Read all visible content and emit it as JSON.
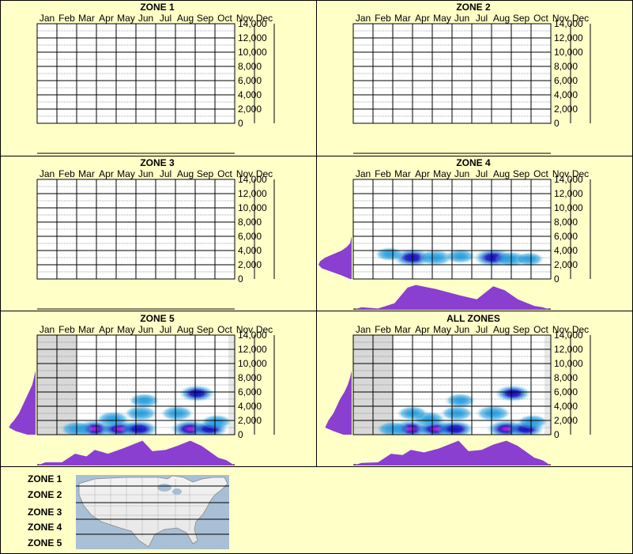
{
  "months": [
    "Jan",
    "Feb",
    "Mar",
    "Apr",
    "May",
    "Jun",
    "Jul",
    "Aug",
    "Sep",
    "Oct",
    "Nov",
    "Dec"
  ],
  "y_ticks": [
    "14,000",
    "12,000",
    "10,000",
    "8,000",
    "6,000",
    "4,000",
    "2,000",
    "0"
  ],
  "colors": {
    "background": "#ffffc8",
    "profile": "#8a3fd1",
    "density_light": "#bfeff0",
    "density_mid": "#2aa0e0",
    "density_dark": "#1010c0",
    "density_peak": "#e018d8",
    "winter_shade": "#d8d8d8"
  },
  "legend": {
    "labels": [
      "ZONE 1",
      "ZONE 2",
      "ZONE 3",
      "ZONE 4",
      "ZONE 5"
    ],
    "map": "us-map-with-zone-bands"
  },
  "chart_data": [
    {
      "type": "heatmap",
      "title": "ZONE 1",
      "x": [
        "Jan",
        "Feb",
        "Mar",
        "Apr",
        "May",
        "Jun",
        "Jul",
        "Aug",
        "Sep",
        "Oct",
        "Nov",
        "Dec"
      ],
      "ylim": [
        0,
        14000
      ],
      "elevation_profile": [],
      "month_profile": [],
      "density": []
    },
    {
      "type": "heatmap",
      "title": "ZONE 2",
      "x": [
        "Jan",
        "Feb",
        "Mar",
        "Apr",
        "May",
        "Jun",
        "Jul",
        "Aug",
        "Sep",
        "Oct",
        "Nov",
        "Dec"
      ],
      "ylim": [
        0,
        14000
      ],
      "elevation_profile": [],
      "month_profile": [],
      "density": []
    },
    {
      "type": "heatmap",
      "title": "ZONE 3",
      "x": [
        "Jan",
        "Feb",
        "Mar",
        "Apr",
        "May",
        "Jun",
        "Jul",
        "Aug",
        "Sep",
        "Oct",
        "Nov",
        "Dec"
      ],
      "ylim": [
        0,
        14000
      ],
      "elevation_profile": [],
      "month_profile": [],
      "density": []
    },
    {
      "type": "heatmap",
      "title": "ZONE 4",
      "x": [
        "Jan",
        "Feb",
        "Mar",
        "Apr",
        "May",
        "Jun",
        "Jul",
        "Aug",
        "Sep",
        "Oct",
        "Nov",
        "Dec"
      ],
      "ylim": [
        0,
        14000
      ],
      "elevation_profile": [
        [
          0,
          0.05
        ],
        [
          500,
          0.3
        ],
        [
          1000,
          0.6
        ],
        [
          1500,
          0.9
        ],
        [
          2000,
          1.0
        ],
        [
          2500,
          0.95
        ],
        [
          3000,
          0.8
        ],
        [
          3500,
          0.55
        ],
        [
          4000,
          0.3
        ],
        [
          4500,
          0.15
        ],
        [
          5000,
          0.05
        ],
        [
          6000,
          0
        ]
      ],
      "month_profile": [
        [
          0.5,
          0.1
        ],
        [
          1.5,
          0.05
        ],
        [
          2.5,
          0.25
        ],
        [
          3.3,
          0.85
        ],
        [
          3.8,
          0.95
        ],
        [
          5,
          0.8
        ],
        [
          6.5,
          0.55
        ],
        [
          7.5,
          0.4
        ],
        [
          8.5,
          0.9
        ],
        [
          9.2,
          0.75
        ],
        [
          10,
          0.4
        ],
        [
          11,
          0.15
        ],
        [
          11.5,
          0.1
        ]
      ],
      "density": [
        [
          3.6,
          3000,
          1.0
        ],
        [
          5.0,
          3000,
          0.7
        ],
        [
          8.5,
          3000,
          1.0
        ],
        [
          9.6,
          2800,
          0.6
        ],
        [
          6.5,
          3200,
          0.5
        ],
        [
          2.2,
          3500,
          0.4
        ],
        [
          10.7,
          2800,
          0.4
        ]
      ]
    },
    {
      "type": "heatmap",
      "title": "ZONE 5",
      "x": [
        "Jan",
        "Feb",
        "Mar",
        "Apr",
        "May",
        "Jun",
        "Jul",
        "Aug",
        "Sep",
        "Oct",
        "Nov",
        "Dec"
      ],
      "ylim": [
        0,
        14000
      ],
      "winter_shade": [
        0,
        2
      ],
      "elevation_profile": [
        [
          0,
          0.25
        ],
        [
          500,
          0.6
        ],
        [
          1000,
          0.8
        ],
        [
          1500,
          0.75
        ],
        [
          2000,
          0.65
        ],
        [
          3000,
          0.5
        ],
        [
          4000,
          0.4
        ],
        [
          5000,
          0.3
        ],
        [
          6000,
          0.2
        ],
        [
          7000,
          0.1
        ],
        [
          8000,
          0.05
        ],
        [
          9000,
          0
        ]
      ],
      "month_profile": [
        [
          0.5,
          0.12
        ],
        [
          1.5,
          0.12
        ],
        [
          2.3,
          0.45
        ],
        [
          3,
          0.35
        ],
        [
          3.5,
          0.6
        ],
        [
          4.3,
          0.45
        ],
        [
          5.2,
          0.65
        ],
        [
          6.4,
          0.95
        ],
        [
          7,
          0.55
        ],
        [
          7.8,
          0.6
        ],
        [
          8.5,
          0.75
        ],
        [
          9.3,
          0.95
        ],
        [
          10,
          0.75
        ],
        [
          11,
          0.3
        ],
        [
          11.5,
          0.2
        ]
      ],
      "density": [
        [
          3.5,
          800,
          1.0
        ],
        [
          5.0,
          800,
          1.0
        ],
        [
          6.2,
          800,
          0.9
        ],
        [
          9.3,
          800,
          1.0
        ],
        [
          10.5,
          800,
          0.8
        ],
        [
          2.4,
          800,
          0.6
        ],
        [
          6.5,
          4800,
          0.5
        ],
        [
          9.7,
          5800,
          0.8
        ],
        [
          6.3,
          3000,
          0.6
        ],
        [
          8.5,
          3000,
          0.6
        ],
        [
          4.6,
          2200,
          0.6
        ],
        [
          10.9,
          1800,
          0.5
        ]
      ]
    },
    {
      "type": "heatmap",
      "title": "ALL ZONES",
      "x": [
        "Jan",
        "Feb",
        "Mar",
        "Apr",
        "May",
        "Jun",
        "Jul",
        "Aug",
        "Sep",
        "Oct",
        "Nov",
        "Dec"
      ],
      "ylim": [
        0,
        14000
      ],
      "winter_shade": [
        0,
        2
      ],
      "elevation_profile": [
        [
          0,
          0.25
        ],
        [
          500,
          0.55
        ],
        [
          1000,
          0.8
        ],
        [
          1500,
          0.75
        ],
        [
          2000,
          0.7
        ],
        [
          3000,
          0.55
        ],
        [
          4000,
          0.45
        ],
        [
          5000,
          0.35
        ],
        [
          6000,
          0.22
        ],
        [
          7000,
          0.12
        ],
        [
          8000,
          0.05
        ],
        [
          9000,
          0
        ]
      ],
      "month_profile": [
        [
          0.5,
          0.1
        ],
        [
          1.5,
          0.12
        ],
        [
          2.3,
          0.45
        ],
        [
          3,
          0.4
        ],
        [
          3.5,
          0.6
        ],
        [
          4.3,
          0.5
        ],
        [
          5.2,
          0.65
        ],
        [
          6.4,
          0.95
        ],
        [
          7,
          0.55
        ],
        [
          7.8,
          0.6
        ],
        [
          8.5,
          0.8
        ],
        [
          9.3,
          0.95
        ],
        [
          10,
          0.75
        ],
        [
          11,
          0.3
        ],
        [
          11.5,
          0.2
        ]
      ],
      "density": [
        [
          3.5,
          800,
          1.0
        ],
        [
          5.0,
          800,
          1.0
        ],
        [
          6.2,
          800,
          0.9
        ],
        [
          9.3,
          800,
          1.0
        ],
        [
          10.5,
          800,
          0.8
        ],
        [
          2.4,
          800,
          0.6
        ],
        [
          6.5,
          4800,
          0.5
        ],
        [
          9.7,
          5800,
          0.8
        ],
        [
          6.3,
          3000,
          0.6
        ],
        [
          8.5,
          3000,
          0.7
        ],
        [
          4.6,
          2200,
          0.6
        ],
        [
          10.9,
          1800,
          0.5
        ],
        [
          3.6,
          3000,
          0.5
        ]
      ]
    }
  ]
}
